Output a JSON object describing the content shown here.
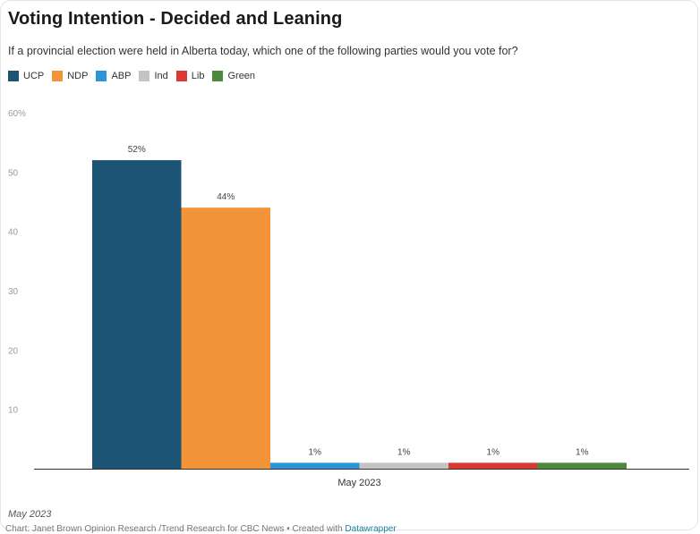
{
  "chart_data": {
    "type": "bar",
    "title": "Voting Intention - Decided and Leaning",
    "subtitle": "If a provincial election were held in Alberta today, which one of the following parties would you vote for?",
    "categories": [
      "May 2023"
    ],
    "series": [
      {
        "name": "UCP",
        "color": "#1b5474",
        "values": [
          52
        ],
        "label": "52%"
      },
      {
        "name": "NDP",
        "color": "#f39438",
        "values": [
          44
        ],
        "label": "44%"
      },
      {
        "name": "ABP",
        "color": "#2b95d8",
        "values": [
          1
        ],
        "label": "1%"
      },
      {
        "name": "Ind",
        "color": "#c4c4c4",
        "values": [
          1
        ],
        "label": "1%"
      },
      {
        "name": "Lib",
        "color": "#d93b32",
        "values": [
          1
        ],
        "label": "1%"
      },
      {
        "name": "Green",
        "color": "#4a8a3a",
        "values": [
          1
        ],
        "label": "1%"
      }
    ],
    "ylim": [
      0,
      60
    ],
    "yticks": [
      10,
      20,
      30,
      40,
      50,
      60
    ],
    "ytick_labels": [
      "10",
      "20",
      "30",
      "40",
      "50",
      "60%"
    ],
    "legend": "top-left",
    "grid": false
  },
  "footer": {
    "date": "May 2023",
    "credit_prefix": "Chart: Janet Brown Opinion Research /Trend Research for CBC News • Created with ",
    "credit_link": "Datawrapper"
  }
}
